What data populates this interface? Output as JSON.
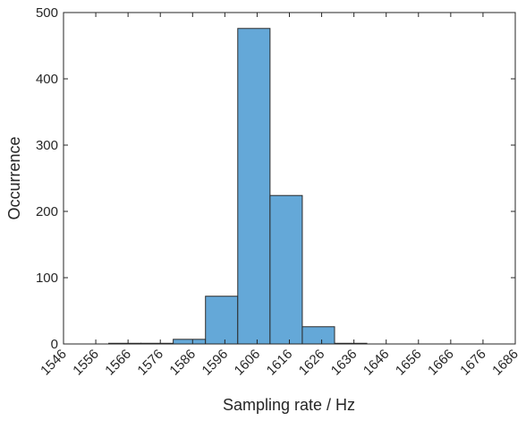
{
  "chart_data": {
    "type": "histogram",
    "x_label": "Sampling rate / Hz",
    "y_label": "Occurrence",
    "bins": [
      1560,
      1570,
      1580,
      1590,
      1600,
      1610,
      1620,
      1630,
      1640
    ],
    "values": [
      1,
      1,
      7,
      72,
      476,
      224,
      26,
      1
    ],
    "color": "#64a8d8",
    "edge_color": "#2b2b2b",
    "xlim": [
      1546,
      1686
    ],
    "xticks": [
      1546,
      1556,
      1566,
      1576,
      1586,
      1596,
      1606,
      1616,
      1626,
      1636,
      1646,
      1656,
      1666,
      1676,
      1686
    ],
    "ylim": [
      0,
      500
    ],
    "yticks": [
      0,
      100,
      200,
      300,
      400,
      500
    ]
  }
}
